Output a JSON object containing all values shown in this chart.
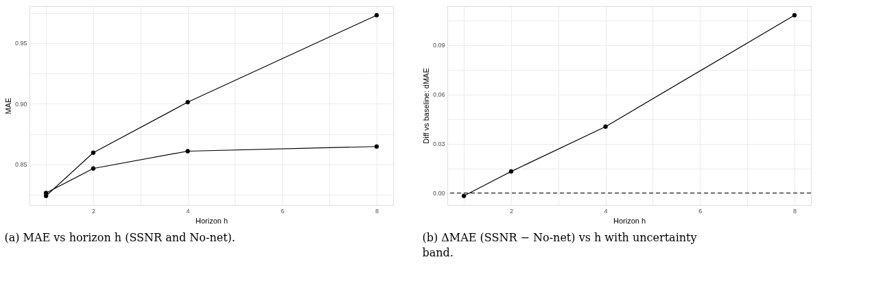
{
  "chart_data": [
    {
      "type": "line",
      "xlabel": "Horizon h",
      "ylabel": "MAE",
      "x": [
        1,
        2,
        4,
        8
      ],
      "series": [
        {
          "color": "#000000",
          "values": [
            0.824,
            0.8596,
            0.9013,
            0.973
          ]
        },
        {
          "color": "#000000",
          "values": [
            0.8264,
            0.8466,
            0.8609,
            0.8647
          ]
        }
      ],
      "xlim": [
        0.65,
        8.35
      ],
      "ylim": [
        0.8165,
        0.9805
      ],
      "xticks": [
        {
          "value": 1,
          "label": null
        },
        2,
        {
          "value": 3,
          "label": null
        },
        4,
        {
          "value": 5,
          "label": null
        },
        6,
        {
          "value": 7,
          "label": null
        },
        8
      ],
      "yticks": [
        {
          "value": 0.825,
          "label": null
        },
        {
          "value": 0.85,
          "label": "0.85"
        },
        {
          "value": 0.875,
          "label": null
        },
        {
          "value": 0.9,
          "label": "0.90"
        },
        {
          "value": 0.925,
          "label": null
        },
        0.95,
        {
          "value": 0.975,
          "label": null
        }
      ],
      "grid": true,
      "marker": "circle",
      "line_style": "solid",
      "annotations": [
        "(a) MAE vs horizon h (SSNR and No-net)."
      ]
    },
    {
      "type": "line",
      "xlabel": "Horizon h",
      "ylabel": "Diff vs baseline: dMAE",
      "x": [
        1,
        2,
        4,
        8
      ],
      "series": [
        {
          "color": "#000000",
          "values": [
            -0.0018,
            0.0131,
            0.0404,
            0.1082
          ]
        }
      ],
      "xlim": [
        0.65,
        8.35
      ],
      "ylim": [
        -0.0073,
        0.1137
      ],
      "xticks": [
        {
          "value": 1,
          "label": null
        },
        2,
        {
          "value": 3,
          "label": null
        },
        4,
        {
          "value": 5,
          "label": null
        },
        6,
        {
          "value": 7,
          "label": null
        },
        8
      ],
      "yticks": [
        {
          "value": 0,
          "label": "0.00"
        },
        {
          "value": 0.015,
          "label": null
        },
        {
          "value": 0.03,
          "label": "0.03"
        },
        {
          "value": 0.045,
          "label": null
        },
        {
          "value": 0.06,
          "label": "0.06"
        },
        {
          "value": 0.075,
          "label": null
        },
        {
          "value": 0.09,
          "label": "0.09"
        },
        {
          "value": 0.105,
          "label": null
        }
      ],
      "ref_lines": [
        {
          "axis": "y",
          "value": 0,
          "label": null,
          "color": "#000000",
          "line_style": "dashed"
        }
      ],
      "grid": true,
      "marker": "circle",
      "line_style": "solid",
      "annotations": [
        "(b) ΔMAE (SSNR − No-net) vs h with uncertainty band."
      ]
    }
  ]
}
